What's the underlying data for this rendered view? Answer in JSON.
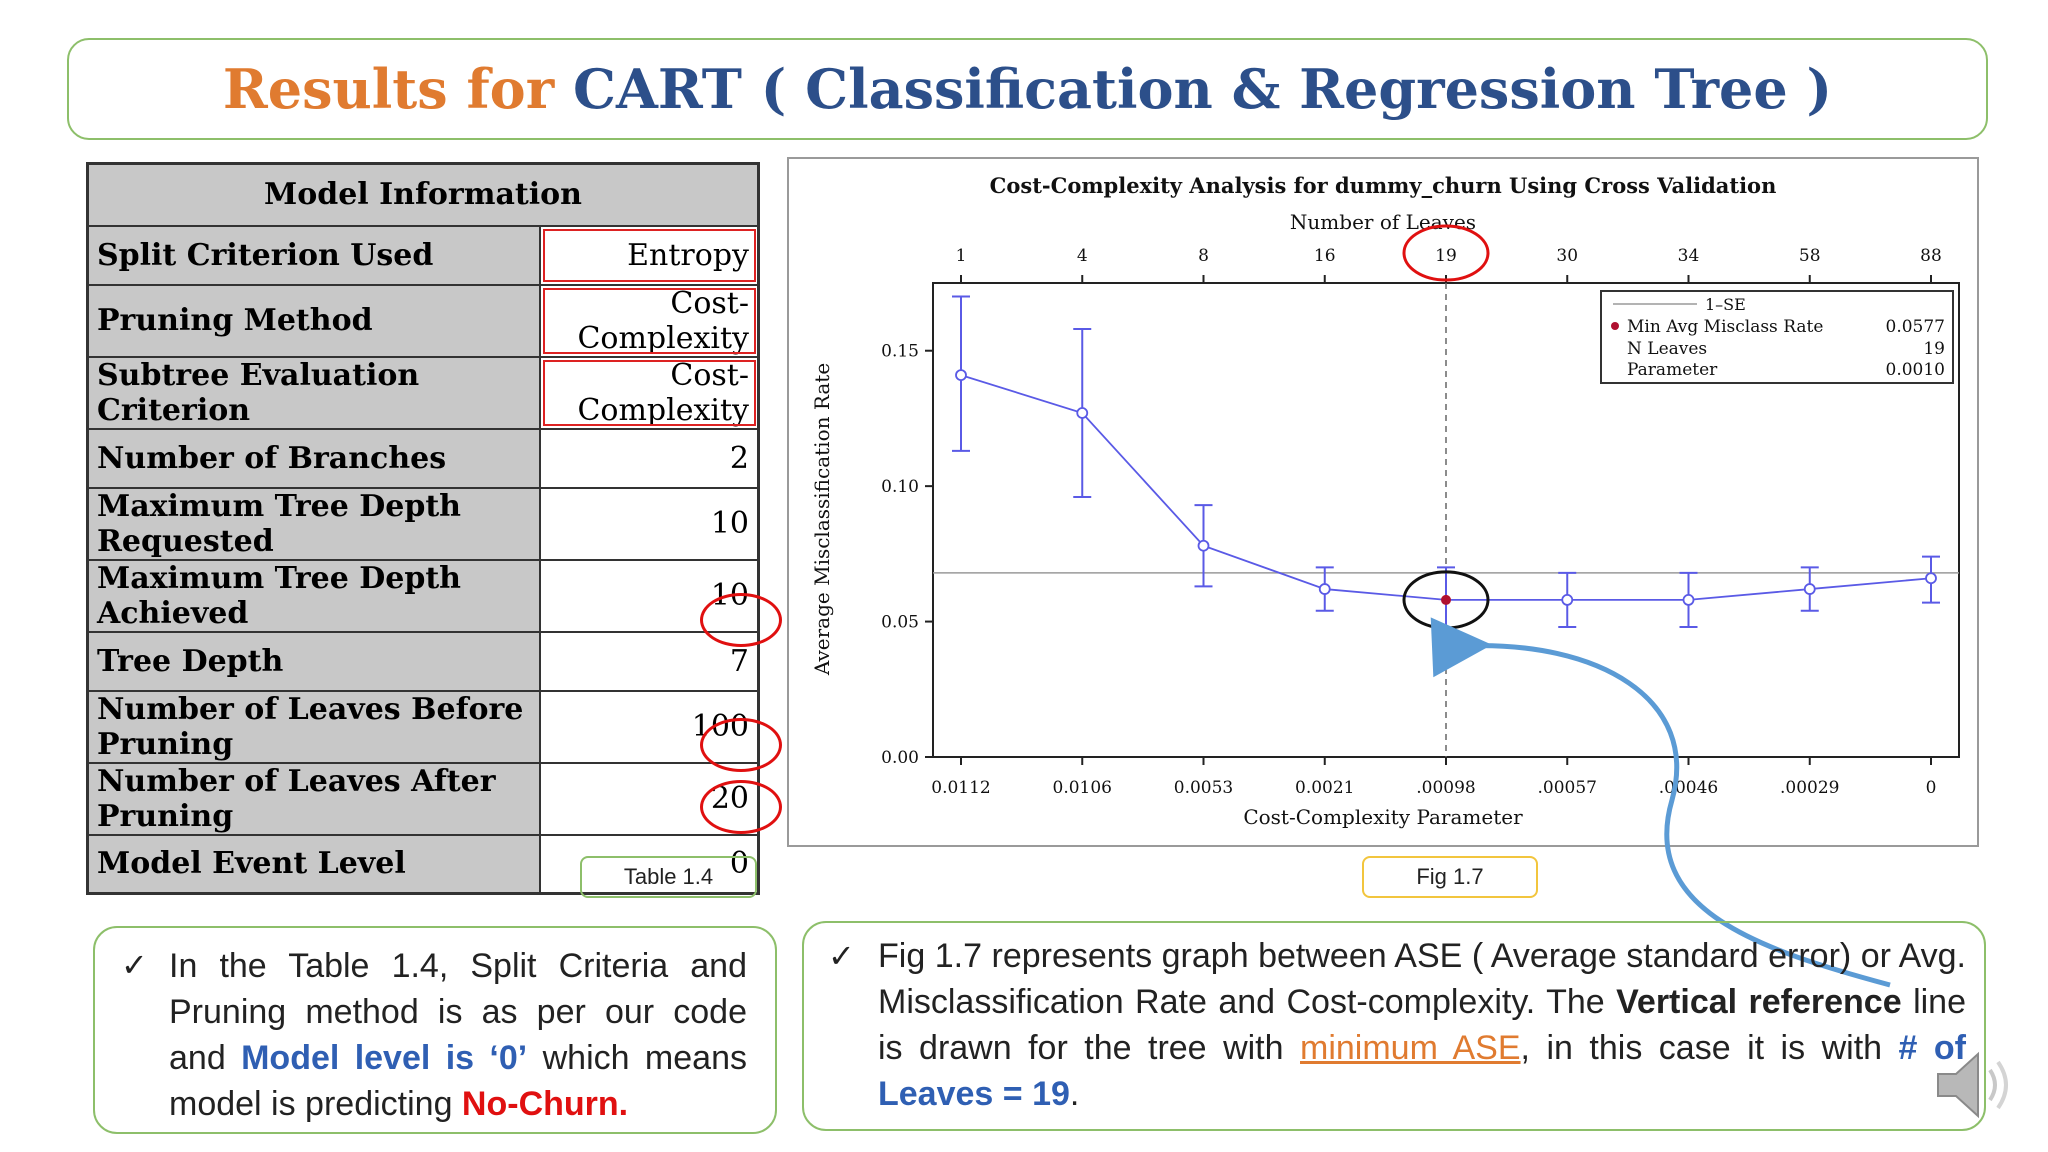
{
  "title": {
    "part1": "Results for",
    "part2": "CART ( Classification & Regression Tree )"
  },
  "model_table": {
    "header": "Model Information",
    "rows": [
      {
        "label": "Split Criterion Used",
        "value": "Entropy"
      },
      {
        "label": "Pruning Method",
        "value": "Cost-Complexity"
      },
      {
        "label": "Subtree Evaluation Criterion",
        "value": "Cost-Complexity"
      },
      {
        "label": "Number of Branches",
        "value": "2"
      },
      {
        "label": "Maximum Tree Depth Requested",
        "value": "10"
      },
      {
        "label": "Maximum Tree Depth Achieved",
        "value": "10"
      },
      {
        "label": "Tree Depth",
        "value": "7"
      },
      {
        "label": "Number of Leaves Before Pruning",
        "value": "100"
      },
      {
        "label": "Number of Leaves After Pruning",
        "value": "20"
      },
      {
        "label": "Model Event Level",
        "value": "0"
      }
    ]
  },
  "captions": {
    "table": "Table 1.4",
    "figure": "Fig 1.7"
  },
  "chart_data": {
    "type": "line",
    "title": "Cost-Complexity Analysis for dummy_churn Using Cross Validation",
    "top_axis_label": "Number of Leaves",
    "top_ticks": [
      "1",
      "4",
      "8",
      "16",
      "19",
      "30",
      "34",
      "58",
      "88"
    ],
    "xlabel": "Cost-Complexity Parameter",
    "x_ticks": [
      "0.0112",
      "0.0106",
      "0.0053",
      "0.0021",
      ".00098",
      ".00057",
      ".00046",
      ".00029",
      "0"
    ],
    "ylabel": "Average Misclassification Rate",
    "y_ticks": [
      "0.00",
      "0.05",
      "0.10",
      "0.15"
    ],
    "ylim": [
      0,
      0.175
    ],
    "series": [
      {
        "values": [
          0.141,
          0.127,
          0.078,
          0.062,
          0.058,
          0.058,
          0.058,
          0.062,
          0.066
        ],
        "err_low": [
          0.113,
          0.096,
          0.063,
          0.054,
          0.047,
          0.048,
          0.048,
          0.054,
          0.057
        ],
        "err_high": [
          0.17,
          0.158,
          0.093,
          0.07,
          0.07,
          0.068,
          0.068,
          0.07,
          0.074
        ]
      }
    ],
    "one_se_line": 0.068,
    "vertical_ref_index": 4,
    "min_index": 4,
    "legend": {
      "line_label": "1–SE",
      "min_label": "Min Avg Misclass Rate",
      "min_value": "0.0577",
      "leaves_label": "N Leaves",
      "leaves_value": "19",
      "param_label": "Parameter",
      "param_value": "0.0010"
    },
    "colors": {
      "series": "#5a5ae6",
      "min_point": "#b01030",
      "ref_line": "#9a9a9a",
      "highlight_red": "#e01010",
      "highlight_black": "#111111",
      "arrow": "#5b9bd5"
    }
  },
  "notes": {
    "left": {
      "t1": "In the Table 1.4, Split Criteria and Pruning method is as per our code and ",
      "t2": "Model level is ‘0’",
      "t3": " which means model is predicting ",
      "t4": "No-Churn."
    },
    "right": {
      "t1": "Fig 1.7 represents graph between ASE ( Average standard error) or Avg. Misclassification Rate and Cost-complexity. The ",
      "t2": "Vertical reference",
      "t3": " line is drawn for the tree with ",
      "t4": "minimum ASE",
      "t5": ", in this case it is with ",
      "t6": "# of Leaves = 19",
      "t7": "."
    }
  },
  "icons": {
    "check": "✓",
    "speaker": "speaker-icon"
  }
}
